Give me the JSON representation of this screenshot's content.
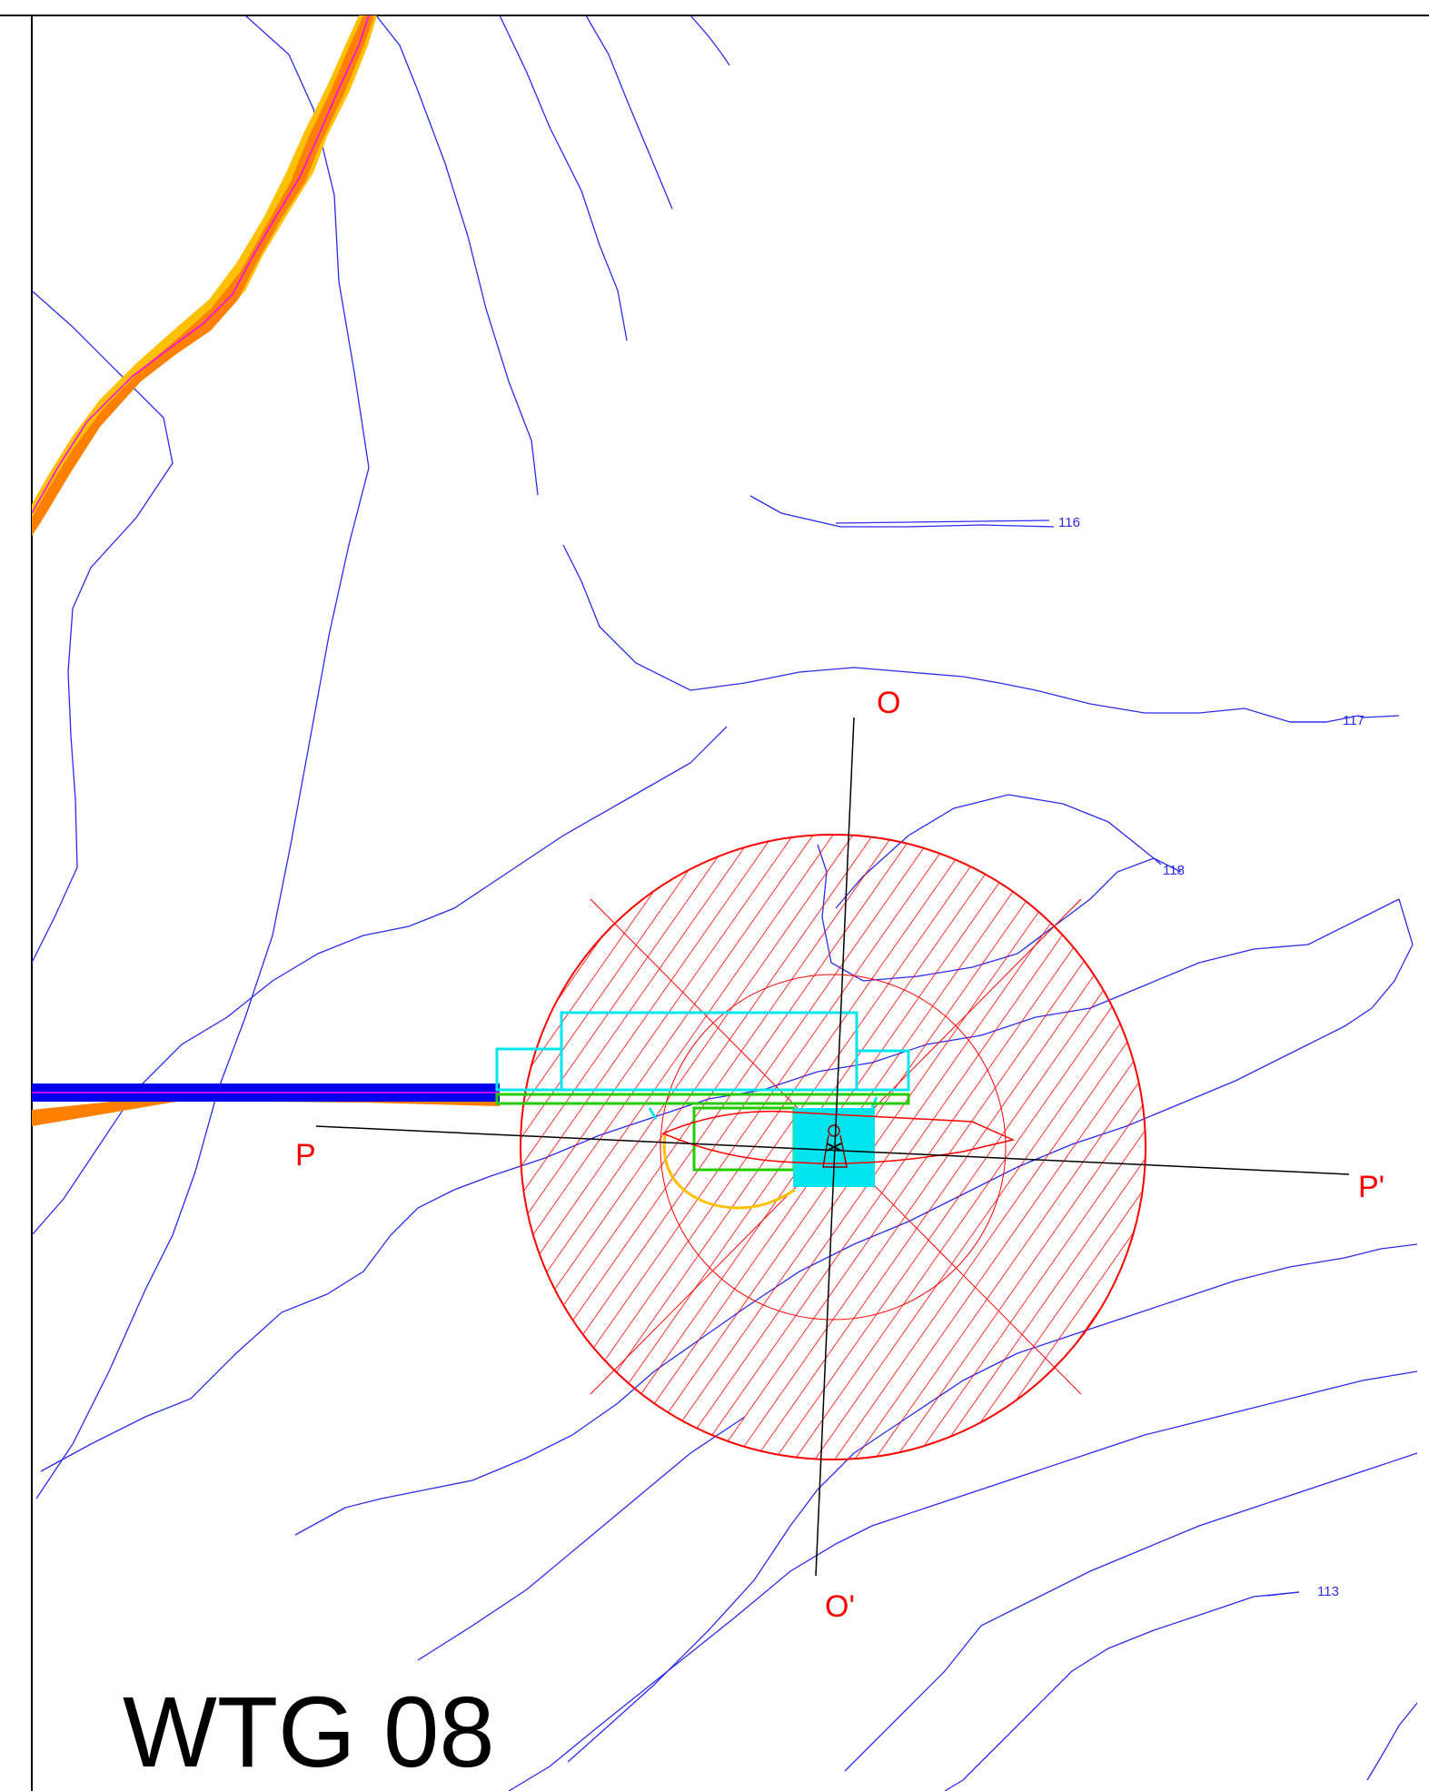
{
  "drawing": {
    "title": "WTG 08",
    "section_labels": {
      "o_top": "O",
      "o_bottom": "O'",
      "p_left": "P",
      "p_right": "P'"
    },
    "contour_labels": {
      "c116": "116",
      "c117": "117",
      "c118": "118",
      "c113": "113"
    },
    "colors": {
      "contour": "#2b2bf0",
      "road_fill": "#ff8000",
      "road_edge": "#ffc000",
      "road_center": "#ff00ff",
      "access_road": "#0000ee",
      "hatch": "#ff0000",
      "platform": "#00e5ee",
      "crane_pad": "#22cc00",
      "section_line": "#000000",
      "label": "#ff0000"
    }
  }
}
